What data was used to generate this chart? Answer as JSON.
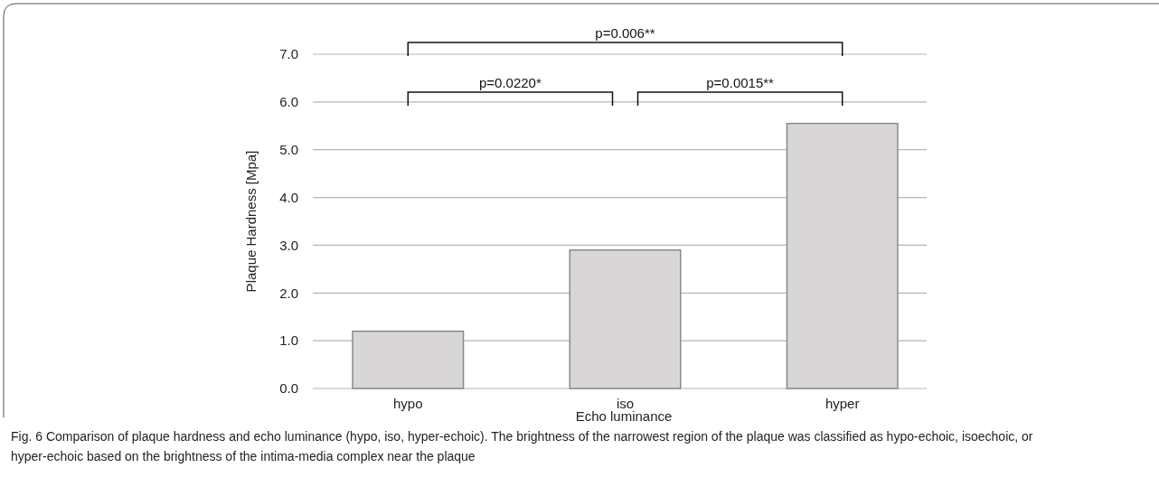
{
  "chart_data": {
    "type": "bar",
    "categories": [
      "hypo",
      "iso",
      "hyper"
    ],
    "values": [
      1.2,
      2.9,
      5.55
    ],
    "color": "#d8d6d7",
    "ylim": [
      0,
      7
    ],
    "yticks": [
      {
        "value": 0,
        "label": "0.0"
      },
      {
        "value": 1,
        "label": "1.0"
      },
      {
        "value": 2,
        "label": "2.0"
      },
      {
        "value": 3,
        "label": "3.0"
      },
      {
        "value": 4,
        "label": "4.0"
      },
      {
        "value": 5,
        "label": "5.0"
      },
      {
        "value": 6,
        "label": "6.0"
      },
      {
        "value": 7,
        "label": "7.0"
      }
    ],
    "grid": "y",
    "xlabel": "Echo luminance",
    "ylabel": "Plaque Hardness [Mpa]",
    "annotations": [
      "p=0.006**",
      "p=0.0220*",
      "p=0.0015**",
      "Fig. 6  Comparison of plaque hardness and echo luminance (hypo, iso, hyper-echoic). The brightness of the narrowest region of the plaque was classified as hypo-echoic, isoechoic, or hyper-echoic based on the brightness of the intima-media complex near the plaque"
    ]
  }
}
